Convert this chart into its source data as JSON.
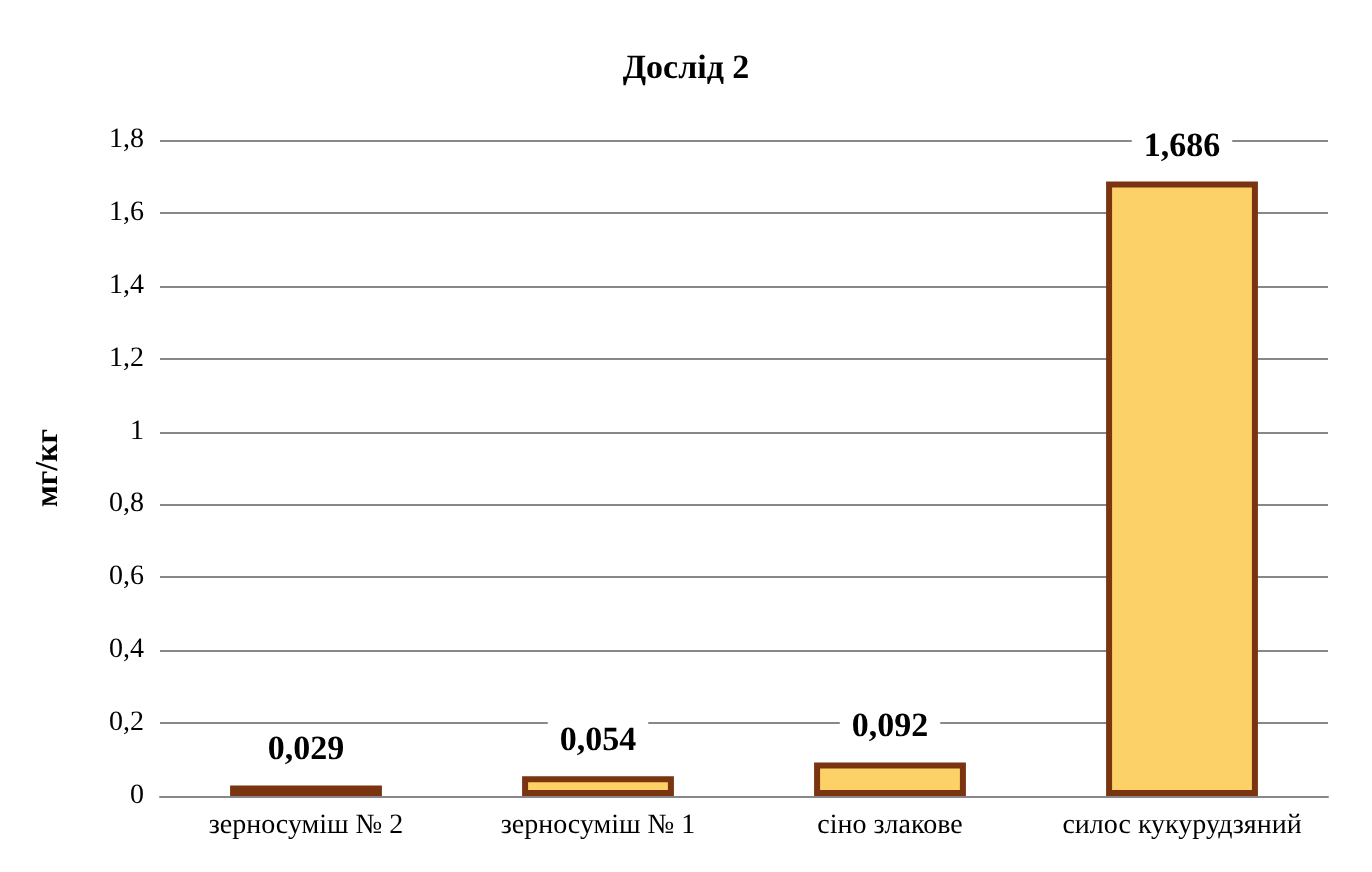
{
  "chart_data": {
    "type": "bar",
    "title": "Дослід 2",
    "ylabel": "мг/кг",
    "categories": [
      "зерносуміш № 2",
      "зерносуміш № 1",
      "сіно злакове",
      "силос кукурудзяний"
    ],
    "values": [
      0.029,
      0.054,
      0.092,
      1.686
    ],
    "value_labels": [
      "0,029",
      "0,054",
      "0,092",
      "1,686"
    ],
    "color": "#fcd167",
    "ylim": [
      0,
      1.8
    ],
    "yticks": [
      0,
      {
        "value": 0.2,
        "label": "0,2"
      },
      {
        "value": 0.4,
        "label": "0,4"
      },
      {
        "value": 0.6,
        "label": "0,6"
      },
      {
        "value": 0.8,
        "label": "0,8"
      },
      1,
      {
        "value": 1.2,
        "label": "1,2"
      },
      {
        "value": 1.4,
        "label": "1,4"
      },
      {
        "value": 1.6,
        "label": "1,6"
      },
      {
        "value": 1.8,
        "label": "1,8"
      }
    ],
    "grid": "y"
  }
}
